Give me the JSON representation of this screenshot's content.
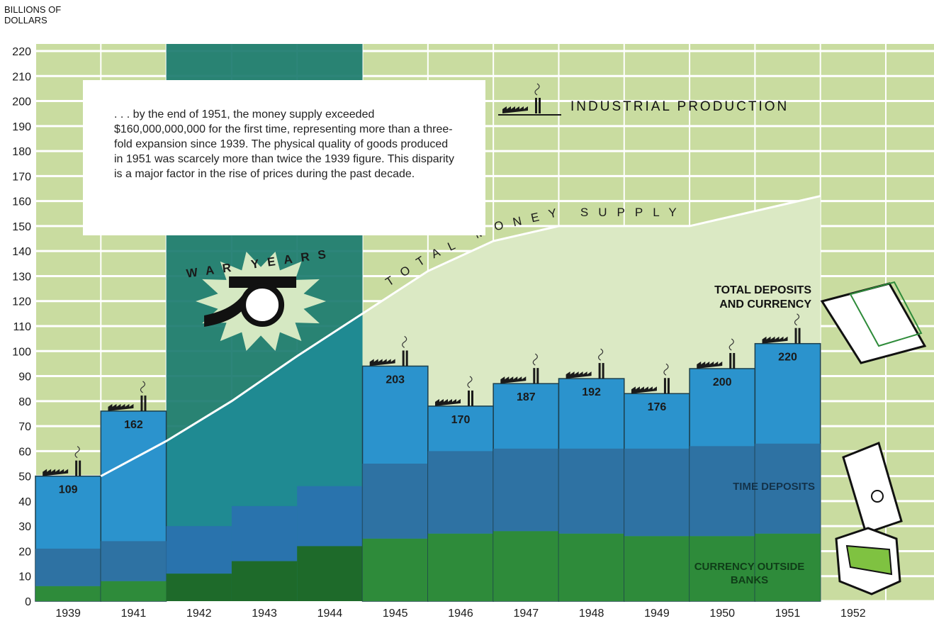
{
  "chart_data": {
    "type": "bar",
    "axis_title": "BILLIONS OF DOLLARS",
    "annotation": ". . . by the end of 1951, the money supply exceeded $160,000,000,000 for the first time, representing more than a three-fold expansion since 1939. The physical quality of goods produced in 1951 was scarcely more than twice the 1939 figure. This disparity is a major factor in the rise of prices during the past decade.",
    "war_label": "WAR YEARS",
    "categories": [
      "1939",
      "1941",
      "1942",
      "1943",
      "1944",
      "1945",
      "1946",
      "1947",
      "1948",
      "1949",
      "1950",
      "1951",
      "1952"
    ],
    "series": [
      {
        "name": "TOTAL MONEY SUPPLY",
        "color": "#ffffff",
        "values": [
          50,
          64,
          80,
          98,
          115,
          132,
          144,
          150,
          150,
          150,
          156,
          162,
          null
        ]
      },
      {
        "name": "TOTAL DEPOSITS AND CURRENCY",
        "color": "#2b93cd",
        "values": [
          50,
          76,
          null,
          null,
          null,
          94,
          78,
          87,
          89,
          83,
          93,
          103,
          null
        ]
      },
      {
        "name": "TIME DEPOSITS",
        "color": "#2f6f9f",
        "values": [
          15,
          16,
          19,
          22,
          24,
          30,
          33,
          33,
          34,
          35,
          36,
          36,
          null
        ]
      },
      {
        "name": "CURRENCY OUTSIDE BANKS",
        "color": "#2e8b3a",
        "values": [
          6,
          8,
          11,
          16,
          22,
          25,
          27,
          28,
          27,
          26,
          26,
          27,
          null
        ]
      },
      {
        "name": "INDUSTRIAL PRODUCTION",
        "color": "#1a1a1a",
        "values": [
          109,
          162,
          null,
          null,
          null,
          203,
          170,
          187,
          192,
          176,
          200,
          220,
          null
        ]
      }
    ],
    "ylim": [
      0,
      220
    ],
    "yticks": [
      0,
      10,
      20,
      30,
      40,
      50,
      60,
      70,
      80,
      90,
      100,
      110,
      120,
      130,
      140,
      150,
      160,
      170,
      180,
      190,
      200,
      210,
      220
    ],
    "grid": true
  }
}
